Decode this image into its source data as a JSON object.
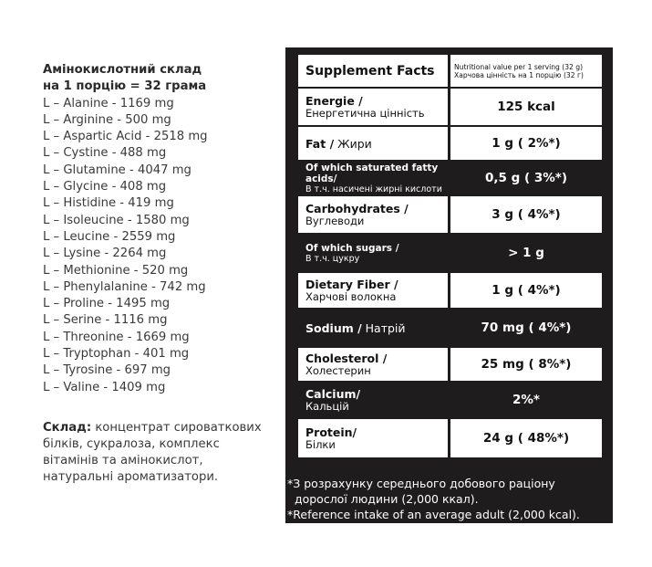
{
  "amino": {
    "title_line1": "Амінокислотний склад",
    "title_line2": "на 1 порцію = 32 грама",
    "items": [
      "L – Alanine - 1169 mg",
      "L – Arginine - 500 mg",
      "L – Aspartic Acid - 2518 mg",
      "L – Cystine - 488 mg",
      "L – Glutamine - 4047 mg",
      "L – Glycine - 408 mg",
      "L – Histidine - 419 mg",
      "L – Isoleucine - 1580 mg",
      "L – Leucine - 2559 mg",
      "L – Lysine - 2264 mg",
      "L – Methionine - 520 mg",
      "L – Phenylalanine - 742 mg",
      "L – Proline - 1495 mg",
      "L – Serine - 1116 mg",
      "L – Threonine - 1669 mg",
      "L – Tryptophan - 401 mg",
      "L – Tyrosine - 697 mg",
      "L – Valine - 1409 mg"
    ]
  },
  "composition": {
    "label": "Склад:",
    "text": " концентрат сироваткових білків, сукралоза, комплекс вітамінів та амінокислот, натуральні ароматизатори."
  },
  "facts": {
    "title": "Supplement Facts",
    "serving_en": "Nutritional value per 1 serving (32 g)",
    "serving_ua": "Харчова цінність на 1 порцію (32 г)",
    "rows": [
      {
        "en": "Energie /",
        "ua": "Енергетична цінність",
        "value": "125 kcal"
      },
      {
        "en": "Fat /",
        "ua": "Жири",
        "value": "1 g ( 2%*)"
      },
      {
        "en": "Of which saturated fatty acids/",
        "ua": "В т.ч. насичені жирні кислоти",
        "value": "0,5 g ( 3%*)"
      },
      {
        "en": "Carbohydrates /",
        "ua": "Вуглеводи",
        "value": "3 g ( 4%*)"
      },
      {
        "en": "Of which sugars /",
        "ua": "В т.ч. цукру",
        "value": "> 1 g"
      },
      {
        "en": "Dietary Fiber /",
        "ua": "Харчові волокна",
        "value": "1 g ( 4%*)"
      },
      {
        "en": "Sodium /",
        "ua": "Натрій",
        "value": "70 mg ( 4%*)"
      },
      {
        "en": "Cholesterol /",
        "ua": "Холестерин",
        "value": "25 mg ( 8%*)"
      },
      {
        "en": "Calcium/",
        "ua": "Кальцій",
        "value": "2%*"
      },
      {
        "en": "Protein/",
        "ua": "Білки",
        "value": "24 g ( 48%*)"
      }
    ],
    "footnote_ua_1": "*З розрахунку середнього добового раціону",
    "footnote_ua_2": "  дорослої людини (2,000 ккал).",
    "footnote_en": "*Reference intake of an average adult (2,000 kcal)."
  }
}
